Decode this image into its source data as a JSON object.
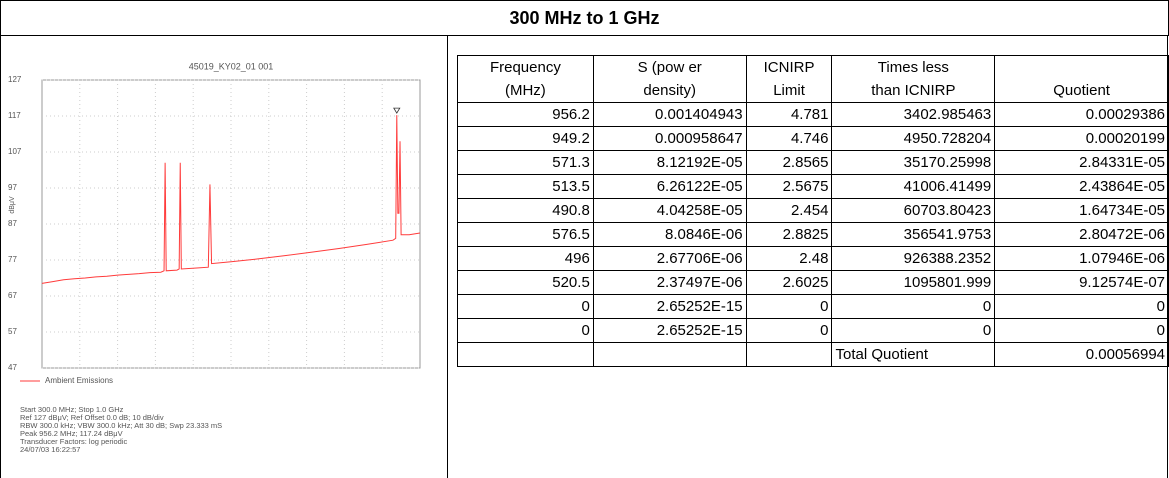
{
  "header": {
    "title": "300 MHz to 1 GHz"
  },
  "chart_data": {
    "type": "line",
    "title": "45019_KY02_01 001",
    "y_label": "dBμV",
    "ylim": [
      47,
      127
    ],
    "yticks": [
      47,
      57,
      67,
      77,
      87,
      97,
      107,
      117,
      127
    ],
    "xlim": [
      300,
      1000
    ],
    "grid": true,
    "series": [
      {
        "name": "Ambient Emissions",
        "color": "#ff3b3b",
        "x": [
          300,
          320,
          340,
          360,
          380,
          400,
          420,
          440,
          460,
          480,
          500,
          520,
          526,
          528,
          530,
          550,
          554,
          556,
          558,
          590,
          608,
          611,
          614,
          650,
          700,
          750,
          800,
          850,
          900,
          950,
          955,
          957,
          959,
          961,
          963,
          965,
          980,
          1000
        ],
        "values": [
          70.5,
          71,
          71.5,
          71.8,
          72,
          72.3,
          72.5,
          72.8,
          73,
          73.2,
          73.5,
          73.6,
          74,
          104,
          74,
          74.2,
          74.5,
          104,
          74.5,
          74.8,
          75,
          98,
          76,
          76.5,
          77.3,
          78.2,
          79.2,
          80.2,
          81.3,
          82.5,
          83,
          117.24,
          90,
          90,
          110,
          84,
          84,
          84.5
        ]
      }
    ],
    "annotations": [
      "Start 300.0 MHz; Stop 1.0 GHz",
      "Ref 127 dBμV; Ref Offset 0.0 dB; 10 dB/div",
      "RBW 300.0 kHz; VBW 300.0 kHz; Att 30 dB; Swp 23.333 mS",
      "Peak 956.2 MHz; 117.24 dBμV",
      "Transducer Factors: log periodic",
      "24/07/03 16:22:57"
    ]
  },
  "table": {
    "headers": [
      [
        "Frequency",
        "(MHz)"
      ],
      [
        "S (pow er",
        "density)"
      ],
      [
        "ICNIRP",
        "Limit"
      ],
      [
        "Times less",
        "than ICNIRP"
      ],
      [
        "Quotient"
      ]
    ],
    "rows": [
      [
        "956.2",
        "0.001404943",
        "4.781",
        "3402.985463",
        "0.00029386"
      ],
      [
        "949.2",
        "0.000958647",
        "4.746",
        "4950.728204",
        "0.00020199"
      ],
      [
        "571.3",
        "8.12192E-05",
        "2.8565",
        "35170.25998",
        "2.84331E-05"
      ],
      [
        "513.5",
        "6.26122E-05",
        "2.5675",
        "41006.41499",
        "2.43864E-05"
      ],
      [
        "490.8",
        "4.04258E-05",
        "2.454",
        "60703.80423",
        "1.64734E-05"
      ],
      [
        "576.5",
        "8.0846E-06",
        "2.8825",
        "356541.9753",
        "2.80472E-06"
      ],
      [
        "496",
        "2.67706E-06",
        "2.48",
        "926388.2352",
        "1.07946E-06"
      ],
      [
        "520.5",
        "2.37497E-06",
        "2.6025",
        "1095801.999",
        "9.12574E-07"
      ],
      [
        "0",
        "2.65252E-15",
        "0",
        "0",
        "0"
      ],
      [
        "0",
        "2.65252E-15",
        "0",
        "0",
        "0"
      ]
    ],
    "total": {
      "label": "Total Quotient",
      "value": "0.00056994"
    }
  }
}
